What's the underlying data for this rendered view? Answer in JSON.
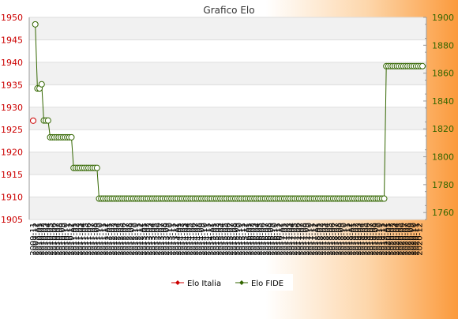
{
  "chart_data": {
    "type": "line",
    "title": "Grafico Elo",
    "left_axis": {
      "color": "#cc0000",
      "ylim": [
        1905,
        1950
      ],
      "ticks": [
        1905,
        1910,
        1915,
        1920,
        1925,
        1930,
        1935,
        1940,
        1945,
        1950
      ]
    },
    "right_axis": {
      "color": "#336600",
      "ylim": [
        1755,
        1900
      ],
      "ticks": [
        1760,
        1780,
        1800,
        1820,
        1840,
        1860,
        1880,
        1900
      ]
    },
    "x_tick_labels": [
      "2009-11",
      "2009-12",
      "2010-01",
      "2010-02",
      "2010-03",
      "2010-04",
      "2010-05",
      "2010-06",
      "2010-07",
      "2010-08",
      "2010-09",
      "2010-10",
      "2010-11",
      "2010-12",
      "2011-01",
      "2011-02",
      "2011-03",
      "2011-04",
      "2011-05",
      "2011-06",
      "2011-07",
      "2011-08",
      "2011-09",
      "2011-10",
      "2011-11",
      "2011-12",
      "2012-01",
      "2012-02",
      "2012-03",
      "2012-04",
      "2012-05",
      "2012-06",
      "2012-07",
      "2012-08",
      "2012-09",
      "2012-10",
      "2012-11",
      "2012-12",
      "2013-01",
      "2013-02",
      "2013-03",
      "2013-04",
      "2013-05",
      "2013-06",
      "2013-07",
      "2013-08",
      "2013-09",
      "2013-10",
      "2013-11",
      "2013-12",
      "2014-01",
      "2014-02",
      "2014-03",
      "2014-04",
      "2014-05",
      "2014-06",
      "2014-07",
      "2014-08",
      "2014-09",
      "2014-10",
      "2014-11",
      "2014-12",
      "2015-01",
      "2015-02",
      "2015-03",
      "2015-04",
      "2015-05",
      "2015-06",
      "2015-07",
      "2015-08",
      "2015-09",
      "2015-10",
      "2015-11",
      "2015-12",
      "2016-01",
      "2016-02",
      "2016-03",
      "2016-04",
      "2016-05",
      "2016-06",
      "2016-07",
      "2016-08",
      "2016-09",
      "2016-10",
      "2016-11",
      "2016-12",
      "2017-01",
      "2017-02",
      "2017-03",
      "2017-04",
      "2017-05",
      "2017-06",
      "2017-07",
      "2017-08",
      "2017-09",
      "2017-10",
      "2017-11",
      "2017-12",
      "2018-01",
      "2018-02",
      "2018-03",
      "2018-04",
      "2018-05",
      "2018-06",
      "2018-07",
      "2018-08",
      "2018-09",
      "2018-10",
      "2018-11",
      "2018-12",
      "2019-01",
      "2019-02",
      "2019-03",
      "2019-04",
      "2019-05",
      "2019-06",
      "2019-07",
      "2019-08",
      "2019-09",
      "2019-10",
      "2019-11",
      "2019-12",
      "2020-01",
      "2020-02",
      "2020-03",
      "2020-04",
      "2020-05",
      "2020-06",
      "2020-07",
      "2020-08",
      "2020-09",
      "2020-10",
      "2020-11",
      "2020-12"
    ],
    "series": [
      {
        "name": "Elo Italia",
        "axis": "left",
        "color": "#cc0000",
        "points": [
          [
            0,
            1927
          ]
        ]
      },
      {
        "name": "Elo FIDE",
        "axis": "right",
        "color": "#336600",
        "segments": [
          {
            "from": 1,
            "to": 1,
            "value": 1895
          },
          {
            "from": 2,
            "to": 3,
            "value": 1849
          },
          {
            "from": 4,
            "to": 4,
            "value": 1852
          },
          {
            "from": 5,
            "to": 7,
            "value": 1826
          },
          {
            "from": 8,
            "to": 18,
            "value": 1814
          },
          {
            "from": 19,
            "to": 30,
            "value": 1792
          },
          {
            "from": 31,
            "to": 165,
            "value": 1770
          },
          {
            "from": 166,
            "to": 183,
            "value": 1865
          }
        ]
      }
    ],
    "legend": {
      "position": "bottom-center"
    },
    "grid": true
  }
}
